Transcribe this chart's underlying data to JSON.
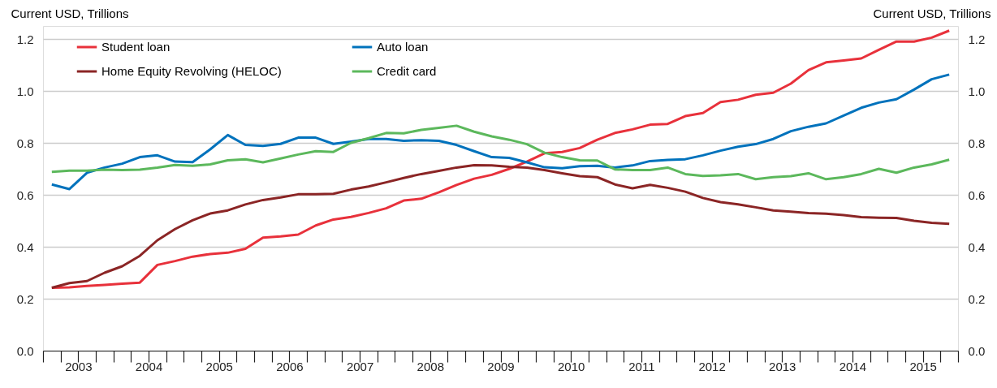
{
  "chart_data": {
    "type": "line",
    "ylabel": "Current USD, Trillions",
    "y2label": "Current USD, Trillions",
    "x": [
      2003.125,
      2003.375,
      2003.625,
      2003.875,
      2004.125,
      2004.375,
      2004.625,
      2004.875,
      2005.125,
      2005.375,
      2005.625,
      2005.875,
      2006.125,
      2006.375,
      2006.625,
      2006.875,
      2007.125,
      2007.375,
      2007.625,
      2007.875,
      2008.125,
      2008.375,
      2008.625,
      2008.875,
      2009.125,
      2009.375,
      2009.625,
      2009.875,
      2010.125,
      2010.375,
      2010.625,
      2010.875,
      2011.125,
      2011.375,
      2011.625,
      2011.875,
      2012.125,
      2012.375,
      2012.625,
      2012.875,
      2013.125,
      2013.375,
      2013.625,
      2013.875,
      2014.125,
      2014.375,
      2014.625,
      2014.875,
      2015.125,
      2015.375,
      2015.625,
      2015.875
    ],
    "xlim": [
      2003,
      2016
    ],
    "xticks": [
      {
        "value": 2003,
        "label": null
      },
      {
        "value": 2003.25,
        "label": null
      },
      {
        "value": 2003.5,
        "label": "2003"
      },
      {
        "value": 2003.75,
        "label": null
      },
      {
        "value": 2004,
        "label": null
      },
      {
        "value": 2004.25,
        "label": null
      },
      {
        "value": 2004.5,
        "label": "2004"
      },
      {
        "value": 2004.75,
        "label": null
      },
      {
        "value": 2005,
        "label": null
      },
      {
        "value": 2005.25,
        "label": null
      },
      {
        "value": 2005.5,
        "label": "2005"
      },
      {
        "value": 2005.75,
        "label": null
      },
      {
        "value": 2006,
        "label": null
      },
      {
        "value": 2006.25,
        "label": null
      },
      {
        "value": 2006.5,
        "label": "2006"
      },
      {
        "value": 2006.75,
        "label": null
      },
      {
        "value": 2007,
        "label": null
      },
      {
        "value": 2007.25,
        "label": null
      },
      {
        "value": 2007.5,
        "label": "2007"
      },
      {
        "value": 2007.75,
        "label": null
      },
      {
        "value": 2008,
        "label": null
      },
      {
        "value": 2008.25,
        "label": null
      },
      {
        "value": 2008.5,
        "label": "2008"
      },
      {
        "value": 2008.75,
        "label": null
      },
      {
        "value": 2009,
        "label": null
      },
      {
        "value": 2009.25,
        "label": null
      },
      {
        "value": 2009.5,
        "label": "2009"
      },
      {
        "value": 2009.75,
        "label": null
      },
      {
        "value": 2010,
        "label": null
      },
      {
        "value": 2010.25,
        "label": null
      },
      {
        "value": 2010.5,
        "label": "2010"
      },
      {
        "value": 2010.75,
        "label": null
      },
      {
        "value": 2011,
        "label": null
      },
      {
        "value": 2011.25,
        "label": null
      },
      {
        "value": 2011.5,
        "label": "2011"
      },
      {
        "value": 2011.75,
        "label": null
      },
      {
        "value": 2012,
        "label": null
      },
      {
        "value": 2012.25,
        "label": null
      },
      {
        "value": 2012.5,
        "label": "2012"
      },
      {
        "value": 2012.75,
        "label": null
      },
      {
        "value": 2013,
        "label": null
      },
      {
        "value": 2013.25,
        "label": null
      },
      {
        "value": 2013.5,
        "label": "2013"
      },
      {
        "value": 2013.75,
        "label": null
      },
      {
        "value": 2014,
        "label": null
      },
      {
        "value": 2014.25,
        "label": null
      },
      {
        "value": 2014.5,
        "label": "2014"
      },
      {
        "value": 2014.75,
        "label": null
      },
      {
        "value": 2015,
        "label": null
      },
      {
        "value": 2015.25,
        "label": null
      },
      {
        "value": 2015.5,
        "label": "2015"
      },
      {
        "value": 2015.75,
        "label": null
      },
      {
        "value": 2016,
        "label": null
      }
    ],
    "ylim": [
      0,
      1.25
    ],
    "yticks": [
      {
        "value": 0,
        "label": "0.0"
      },
      0.2,
      0.4,
      0.6,
      0.8,
      {
        "value": 1,
        "label": "1.0"
      },
      1.2
    ],
    "y2lim": [
      0,
      1.25
    ],
    "y2ticks": [
      {
        "value": 0,
        "label": "0.0"
      },
      0.2,
      0.4,
      0.6,
      0.8,
      {
        "value": 1,
        "label": "1.0"
      },
      1.2
    ],
    "grid": "y",
    "legend": "top left",
    "line_style": "solid",
    "marker": "none",
    "series": [
      {
        "name": "Student loan",
        "color": "#e8313b",
        "values": [
          0.242,
          0.244,
          0.249,
          0.253,
          0.258,
          0.262,
          0.33,
          0.345,
          0.362,
          0.372,
          0.377,
          0.392,
          0.435,
          0.44,
          0.447,
          0.482,
          0.505,
          0.515,
          0.53,
          0.548,
          0.578,
          0.585,
          0.61,
          0.638,
          0.662,
          0.677,
          0.7,
          0.728,
          0.76,
          0.765,
          0.78,
          0.812,
          0.838,
          0.852,
          0.87,
          0.873,
          0.903,
          0.915,
          0.957,
          0.966,
          0.985,
          0.993,
          1.028,
          1.08,
          1.11,
          1.117,
          1.125,
          1.158,
          1.19,
          1.19,
          1.205,
          1.232
        ]
      },
      {
        "name": "Auto loan",
        "color": "#0072bc",
        "values": [
          0.64,
          0.622,
          0.685,
          0.705,
          0.72,
          0.745,
          0.752,
          0.728,
          0.726,
          0.775,
          0.83,
          0.792,
          0.788,
          0.796,
          0.82,
          0.82,
          0.796,
          0.805,
          0.815,
          0.815,
          0.808,
          0.81,
          0.808,
          0.792,
          0.768,
          0.745,
          0.742,
          0.725,
          0.706,
          0.702,
          0.71,
          0.712,
          0.705,
          0.713,
          0.73,
          0.734,
          0.737,
          0.752,
          0.77,
          0.785,
          0.795,
          0.815,
          0.845,
          0.862,
          0.875,
          0.905,
          0.935,
          0.955,
          0.968,
          1.005,
          1.045,
          1.063
        ]
      },
      {
        "name": "Home Equity Revolving (HELOC)",
        "color": "#8b2525",
        "values": [
          0.242,
          0.26,
          0.268,
          0.3,
          0.325,
          0.365,
          0.425,
          0.468,
          0.502,
          0.528,
          0.54,
          0.563,
          0.58,
          0.59,
          0.602,
          0.602,
          0.604,
          0.62,
          0.632,
          0.648,
          0.665,
          0.68,
          0.692,
          0.705,
          0.714,
          0.713,
          0.708,
          0.705,
          0.695,
          0.683,
          0.672,
          0.668,
          0.64,
          0.625,
          0.638,
          0.627,
          0.612,
          0.588,
          0.572,
          0.563,
          0.552,
          0.54,
          0.535,
          0.53,
          0.527,
          0.522,
          0.514,
          0.512,
          0.511,
          0.5,
          0.492,
          0.488
        ]
      },
      {
        "name": "Credit card",
        "color": "#5cb85c",
        "values": [
          0.688,
          0.693,
          0.693,
          0.697,
          0.695,
          0.697,
          0.705,
          0.715,
          0.712,
          0.717,
          0.733,
          0.737,
          0.725,
          0.74,
          0.755,
          0.768,
          0.765,
          0.8,
          0.818,
          0.838,
          0.837,
          0.85,
          0.858,
          0.866,
          0.843,
          0.825,
          0.812,
          0.795,
          0.762,
          0.745,
          0.733,
          0.732,
          0.698,
          0.695,
          0.695,
          0.705,
          0.68,
          0.673,
          0.675,
          0.68,
          0.66,
          0.668,
          0.672,
          0.683,
          0.66,
          0.668,
          0.68,
          0.7,
          0.685,
          0.705,
          0.717,
          0.735
        ]
      }
    ]
  }
}
